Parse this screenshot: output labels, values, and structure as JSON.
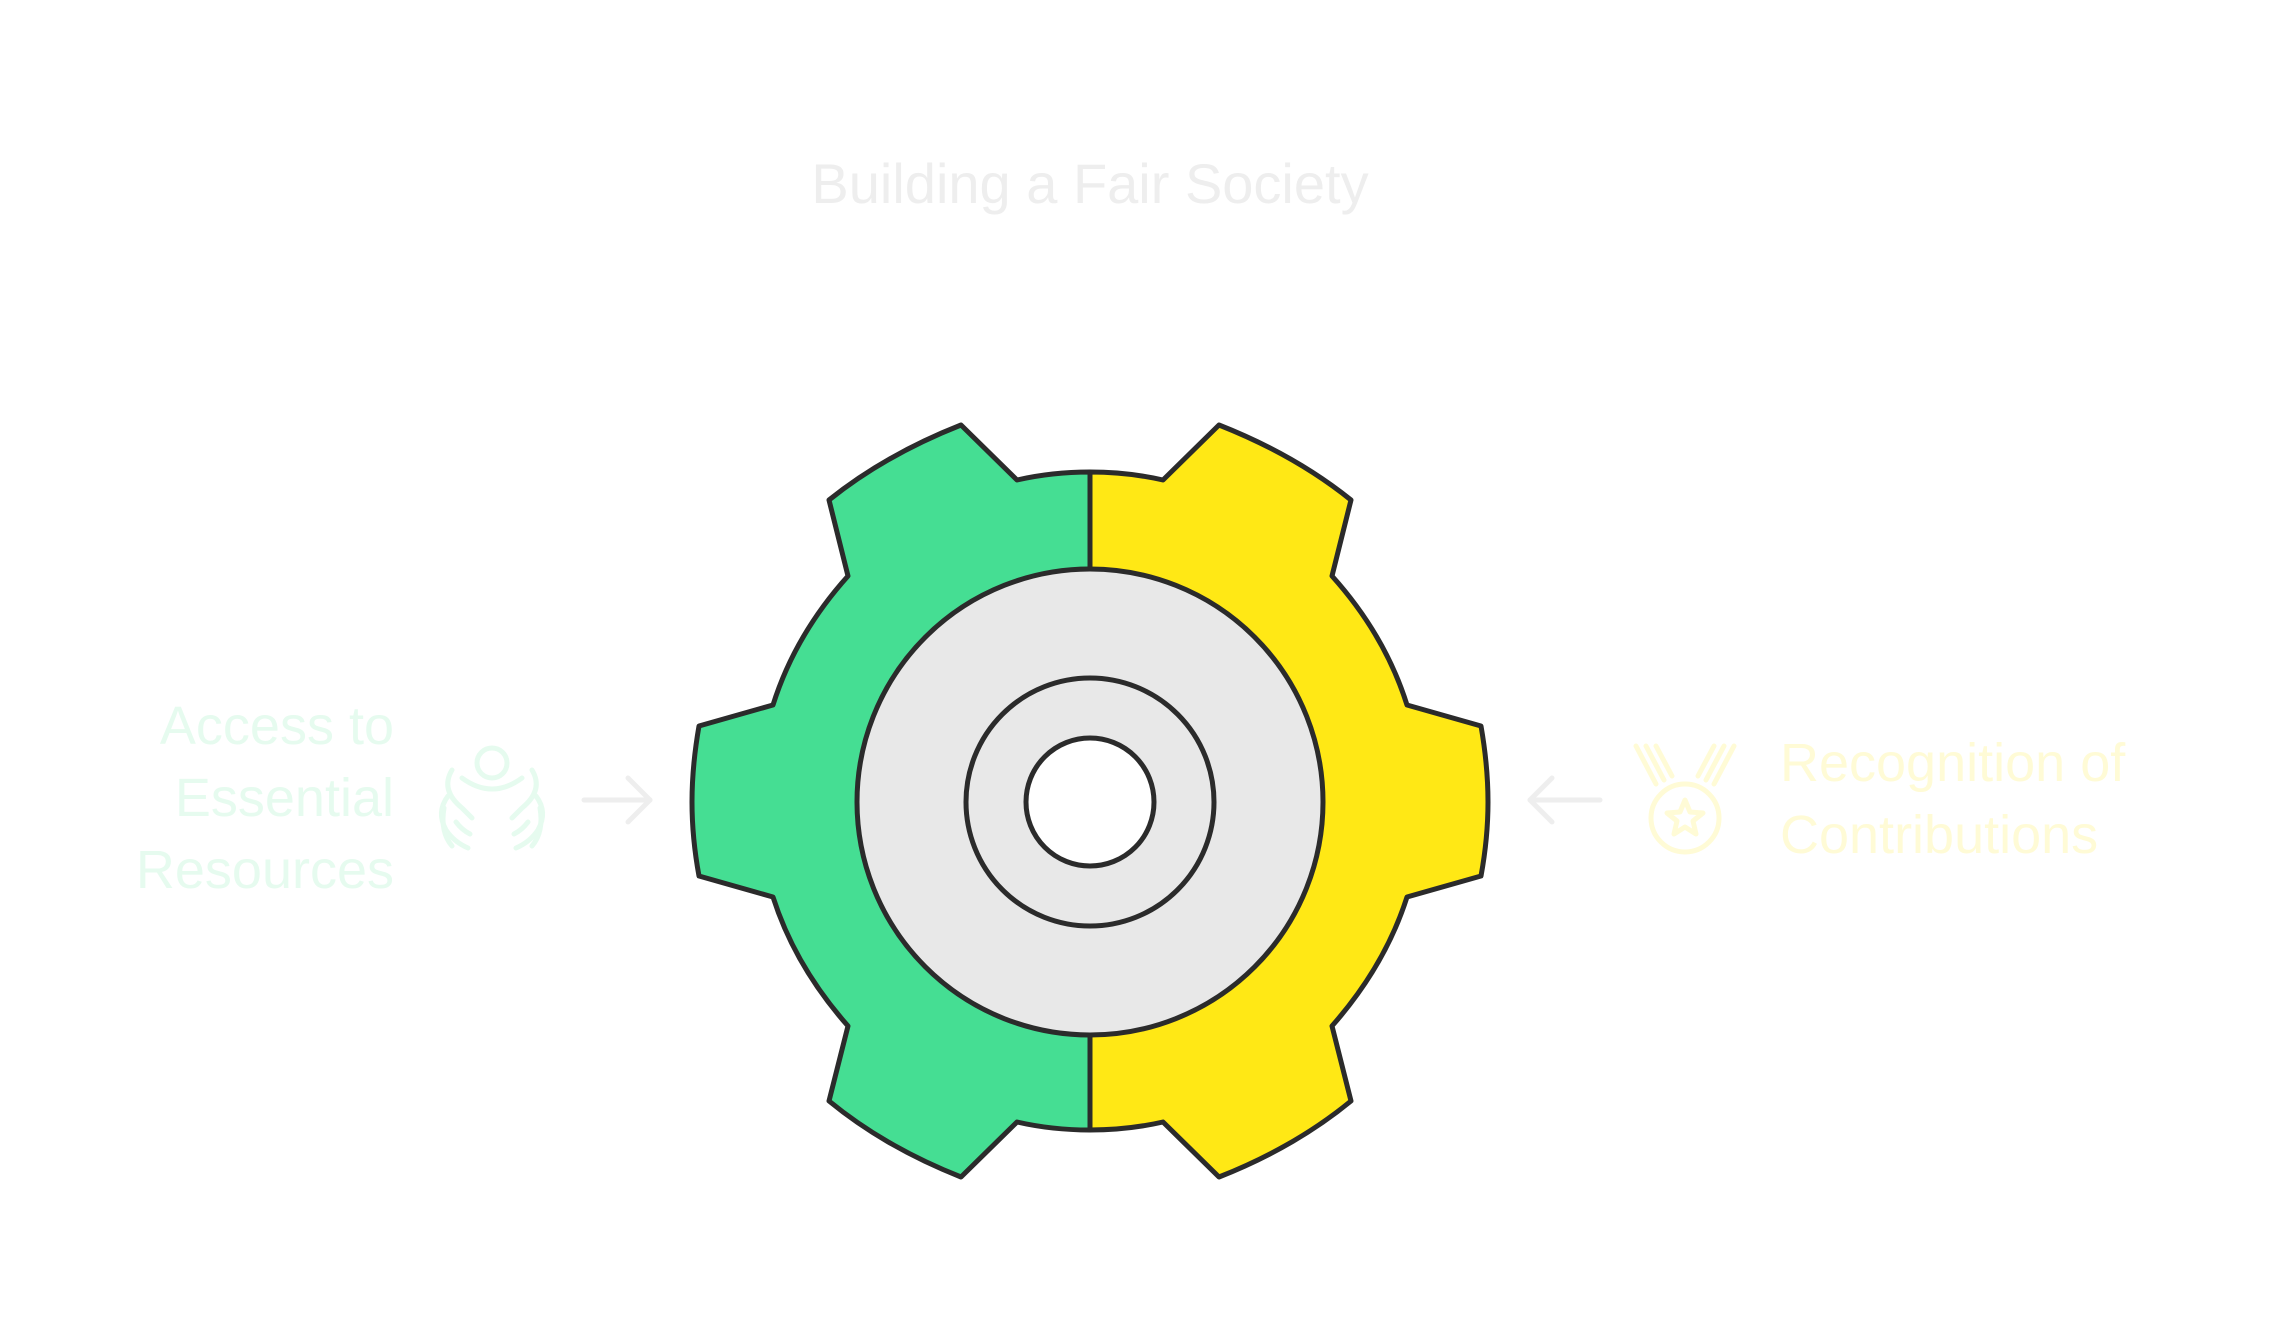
{
  "title": "Building a Fair Society",
  "left": {
    "lines": [
      "Access to",
      "Essential",
      "Resources"
    ],
    "icon": "hands-with-person-icon",
    "color": "#45de93"
  },
  "right": {
    "lines": [
      "Recognition of",
      "Contributions"
    ],
    "icon": "medal-icon",
    "color": "#ffe815"
  },
  "colors": {
    "gear_left": "#45de93",
    "gear_right": "#ffe815",
    "hub": "#e8e8e8",
    "outline": "#2b2b2b",
    "title": "#eeeeee",
    "left_text": "#e6fbef",
    "right_text": "#fffbd6",
    "arrow": "#eeeeee"
  }
}
